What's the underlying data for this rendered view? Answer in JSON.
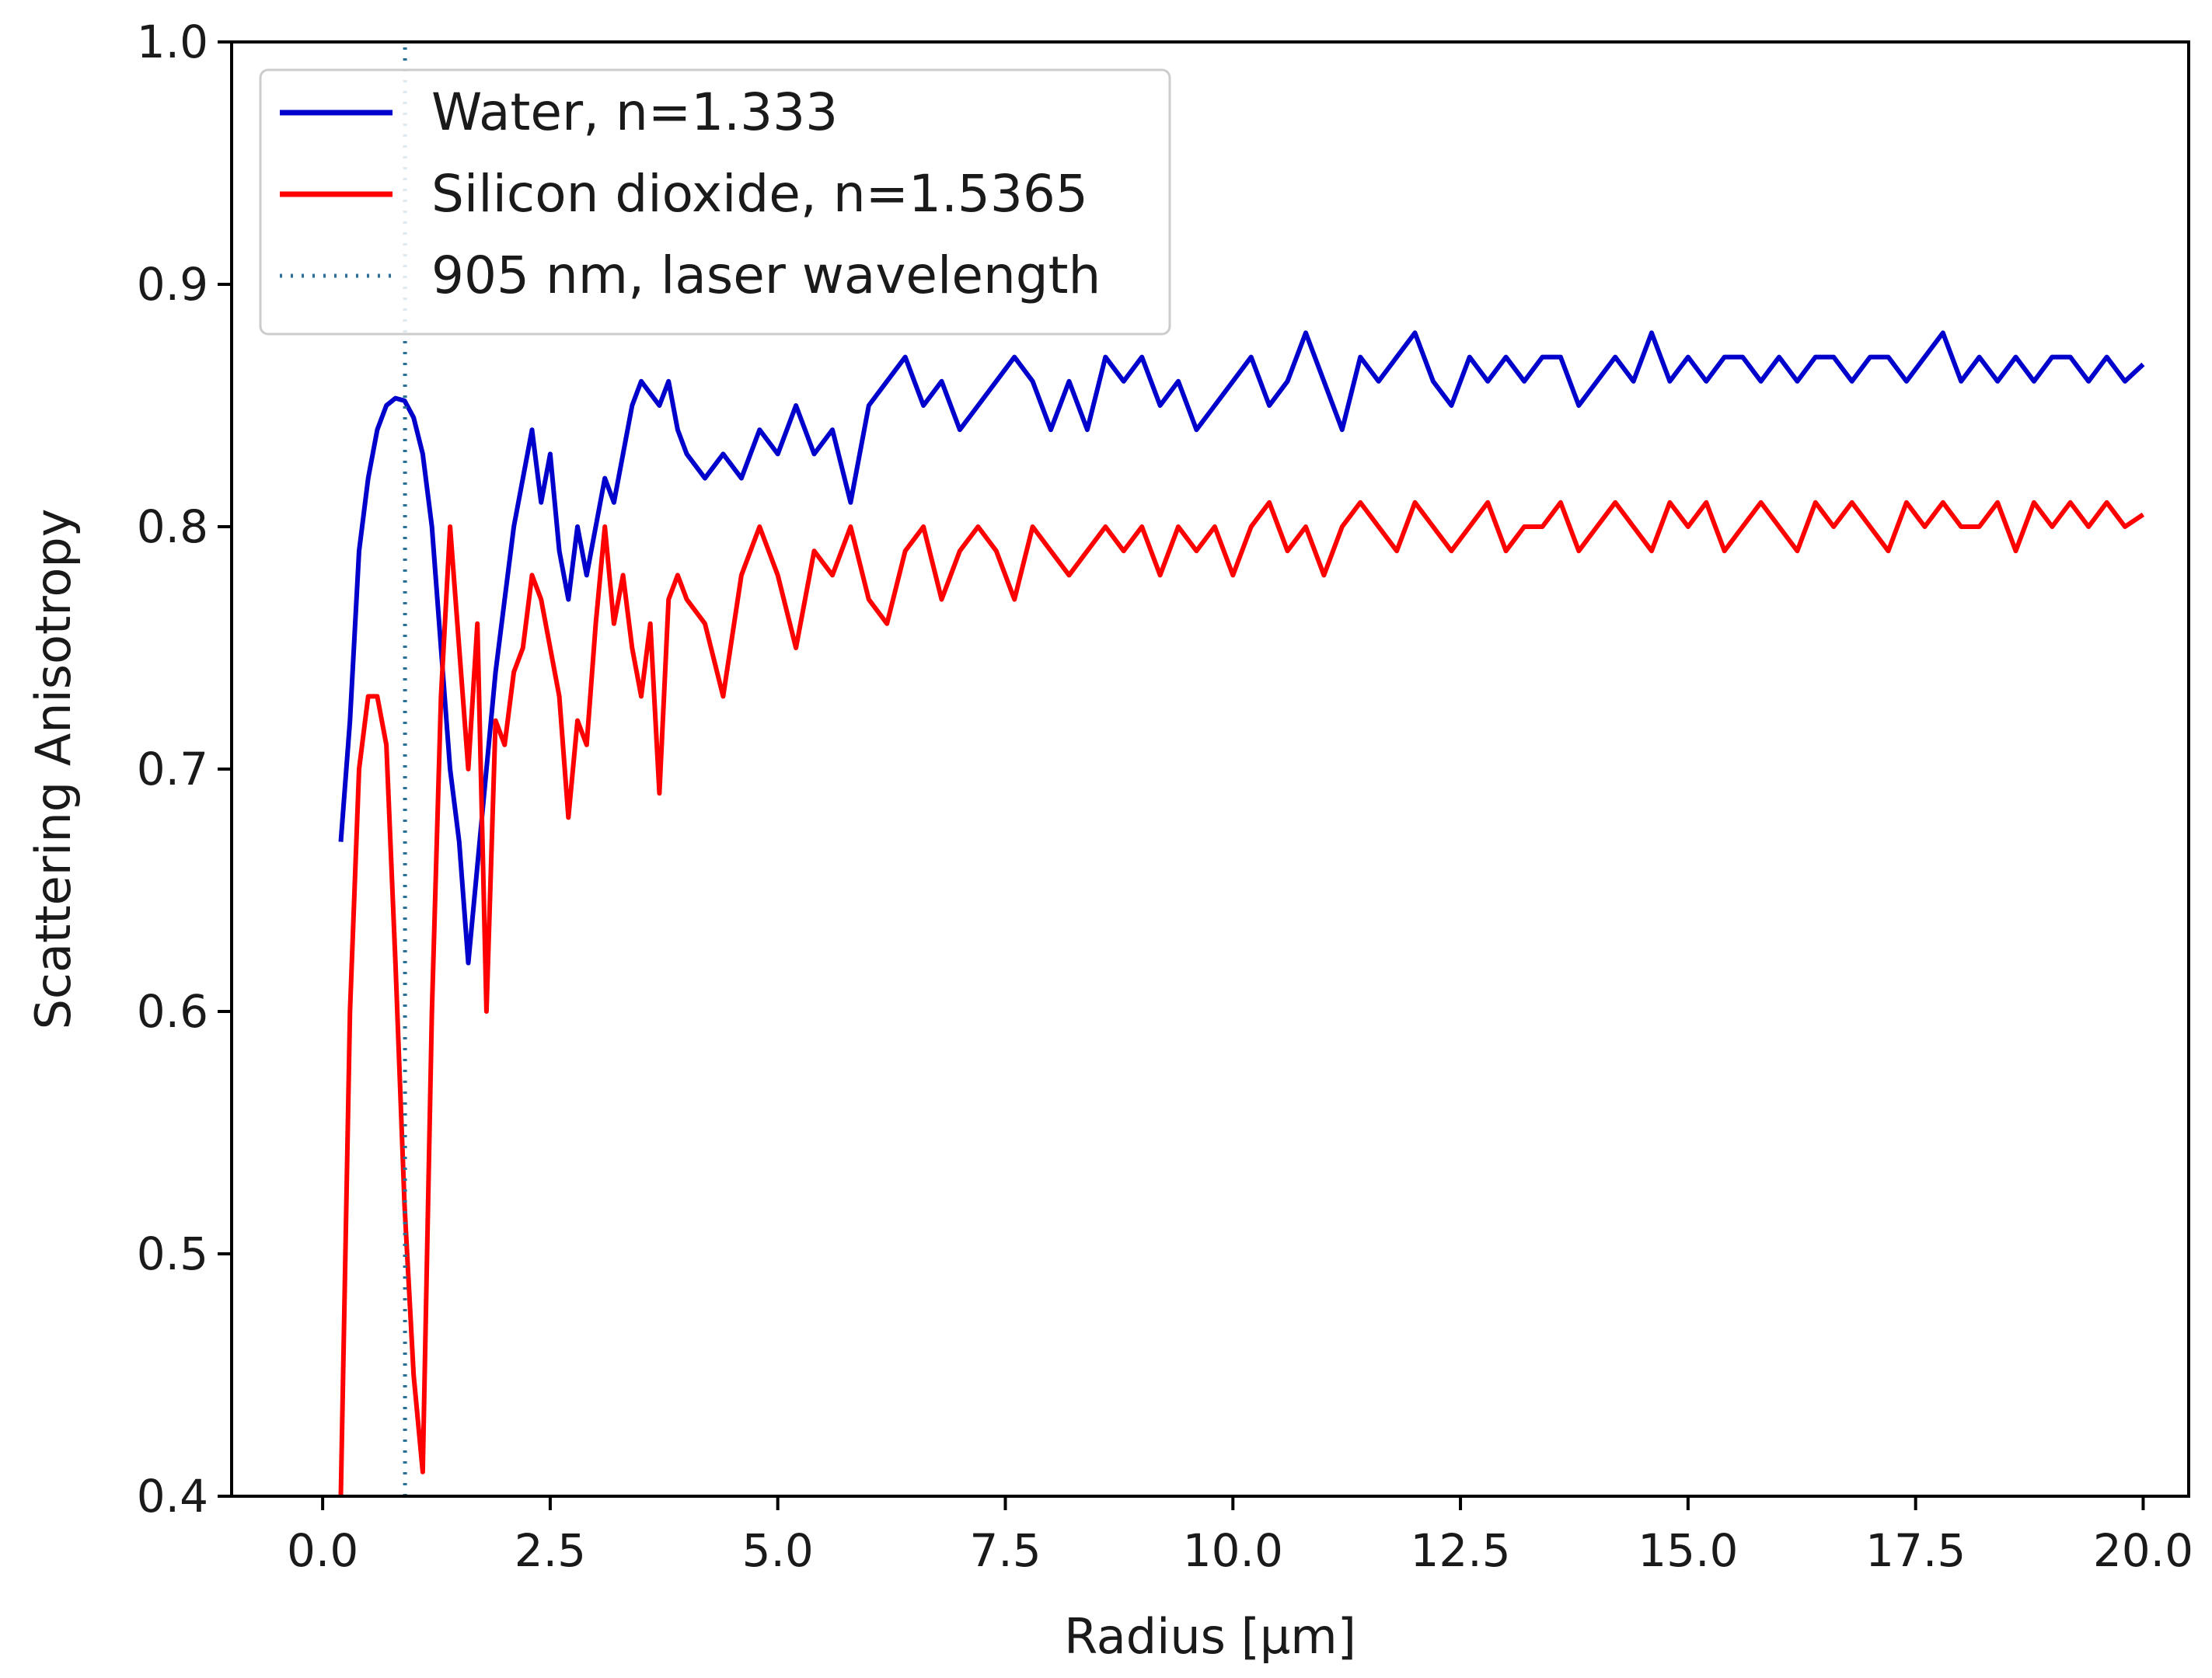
{
  "chart_data": {
    "type": "line",
    "title": "",
    "xlabel": "Radius [μm]",
    "ylabel": "Scattering Anisotropy",
    "xlim": [
      -1.0,
      20.5
    ],
    "ylim": [
      0.4,
      1.0
    ],
    "xticks": [
      0.0,
      2.5,
      5.0,
      7.5,
      10.0,
      12.5,
      15.0,
      17.5,
      20.0
    ],
    "xtick_labels": [
      "0.0",
      "2.5",
      "5.0",
      "7.5",
      "10.0",
      "12.5",
      "15.0",
      "17.5",
      "20.0"
    ],
    "yticks": [
      0.4,
      0.5,
      0.6,
      0.7,
      0.8,
      0.9,
      1.0
    ],
    "ytick_labels": [
      "0.4",
      "0.5",
      "0.6",
      "0.7",
      "0.8",
      "0.9",
      "1.0"
    ],
    "grid": false,
    "legend_position": "top-left",
    "series": [
      {
        "name": "Water, n=1.333",
        "color": "#0000cc",
        "style": "solid",
        "x": [
          0.2,
          0.3,
          0.4,
          0.5,
          0.6,
          0.7,
          0.8,
          0.9,
          1.0,
          1.1,
          1.2,
          1.3,
          1.4,
          1.5,
          1.6,
          1.7,
          1.8,
          1.9,
          2.0,
          2.1,
          2.2,
          2.3,
          2.4,
          2.5,
          2.6,
          2.7,
          2.8,
          2.9,
          3.0,
          3.1,
          3.2,
          3.3,
          3.4,
          3.5,
          3.6,
          3.7,
          3.8,
          3.9,
          4.0,
          4.2,
          4.4,
          4.6,
          4.8,
          5.0,
          5.2,
          5.4,
          5.6,
          5.8,
          6.0,
          6.2,
          6.4,
          6.6,
          6.8,
          7.0,
          7.2,
          7.4,
          7.6,
          7.8,
          8.0,
          8.2,
          8.4,
          8.6,
          8.8,
          9.0,
          9.2,
          9.4,
          9.6,
          9.8,
          10.0,
          10.2,
          10.4,
          10.6,
          10.8,
          11.0,
          11.2,
          11.4,
          11.6,
          11.8,
          12.0,
          12.2,
          12.4,
          12.6,
          12.8,
          13.0,
          13.2,
          13.4,
          13.6,
          13.8,
          14.0,
          14.2,
          14.4,
          14.6,
          14.8,
          15.0,
          15.2,
          15.4,
          15.6,
          15.8,
          16.0,
          16.2,
          16.4,
          16.6,
          16.8,
          17.0,
          17.2,
          17.4,
          17.6,
          17.8,
          18.0,
          18.2,
          18.4,
          18.6,
          18.8,
          19.0,
          19.2,
          19.4,
          19.6,
          19.8,
          20.0
        ],
        "values": [
          0.67,
          0.72,
          0.79,
          0.82,
          0.84,
          0.85,
          0.853,
          0.852,
          0.845,
          0.83,
          0.8,
          0.75,
          0.7,
          0.67,
          0.62,
          0.66,
          0.7,
          0.74,
          0.77,
          0.8,
          0.82,
          0.84,
          0.81,
          0.83,
          0.79,
          0.77,
          0.8,
          0.78,
          0.8,
          0.82,
          0.81,
          0.83,
          0.85,
          0.86,
          0.855,
          0.85,
          0.86,
          0.84,
          0.83,
          0.82,
          0.83,
          0.82,
          0.84,
          0.83,
          0.85,
          0.83,
          0.84,
          0.81,
          0.85,
          0.86,
          0.87,
          0.85,
          0.86,
          0.84,
          0.85,
          0.86,
          0.87,
          0.86,
          0.84,
          0.86,
          0.84,
          0.87,
          0.86,
          0.87,
          0.85,
          0.86,
          0.84,
          0.85,
          0.86,
          0.87,
          0.85,
          0.86,
          0.88,
          0.86,
          0.84,
          0.87,
          0.86,
          0.87,
          0.88,
          0.86,
          0.85,
          0.87,
          0.86,
          0.87,
          0.86,
          0.87,
          0.87,
          0.85,
          0.86,
          0.87,
          0.86,
          0.88,
          0.86,
          0.87,
          0.86,
          0.87,
          0.87,
          0.86,
          0.87,
          0.86,
          0.87,
          0.87,
          0.86,
          0.87,
          0.87,
          0.86,
          0.87,
          0.88,
          0.86,
          0.87,
          0.86,
          0.87,
          0.86,
          0.87,
          0.87,
          0.86,
          0.87,
          0.86,
          0.867
        ]
      },
      {
        "name": "Silicon dioxide, n=1.5365",
        "color": "#ff0000",
        "style": "solid",
        "x": [
          0.2,
          0.3,
          0.4,
          0.5,
          0.6,
          0.7,
          0.8,
          0.9,
          1.0,
          1.1,
          1.2,
          1.3,
          1.4,
          1.5,
          1.6,
          1.7,
          1.8,
          1.9,
          2.0,
          2.1,
          2.2,
          2.3,
          2.4,
          2.5,
          2.6,
          2.7,
          2.8,
          2.9,
          3.0,
          3.1,
          3.2,
          3.3,
          3.4,
          3.5,
          3.6,
          3.7,
          3.8,
          3.9,
          4.0,
          4.2,
          4.4,
          4.6,
          4.8,
          5.0,
          5.2,
          5.4,
          5.6,
          5.8,
          6.0,
          6.2,
          6.4,
          6.6,
          6.8,
          7.0,
          7.2,
          7.4,
          7.6,
          7.8,
          8.0,
          8.2,
          8.4,
          8.6,
          8.8,
          9.0,
          9.2,
          9.4,
          9.6,
          9.8,
          10.0,
          10.2,
          10.4,
          10.6,
          10.8,
          11.0,
          11.2,
          11.4,
          11.6,
          11.8,
          12.0,
          12.2,
          12.4,
          12.6,
          12.8,
          13.0,
          13.2,
          13.4,
          13.6,
          13.8,
          14.0,
          14.2,
          14.4,
          14.6,
          14.8,
          15.0,
          15.2,
          15.4,
          15.6,
          15.8,
          16.0,
          16.2,
          16.4,
          16.6,
          16.8,
          17.0,
          17.2,
          17.4,
          17.6,
          17.8,
          18.0,
          18.2,
          18.4,
          18.6,
          18.8,
          19.0,
          19.2,
          19.4,
          19.6,
          19.8,
          20.0
        ],
        "values": [
          0.4,
          0.6,
          0.7,
          0.73,
          0.73,
          0.71,
          0.62,
          0.52,
          0.45,
          0.41,
          0.6,
          0.73,
          0.8,
          0.75,
          0.7,
          0.76,
          0.6,
          0.72,
          0.71,
          0.74,
          0.75,
          0.78,
          0.77,
          0.75,
          0.73,
          0.68,
          0.72,
          0.71,
          0.76,
          0.8,
          0.76,
          0.78,
          0.75,
          0.73,
          0.76,
          0.69,
          0.77,
          0.78,
          0.77,
          0.76,
          0.73,
          0.78,
          0.8,
          0.78,
          0.75,
          0.79,
          0.78,
          0.8,
          0.77,
          0.76,
          0.79,
          0.8,
          0.77,
          0.79,
          0.8,
          0.79,
          0.77,
          0.8,
          0.79,
          0.78,
          0.79,
          0.8,
          0.79,
          0.8,
          0.78,
          0.8,
          0.79,
          0.8,
          0.78,
          0.8,
          0.81,
          0.79,
          0.8,
          0.78,
          0.8,
          0.81,
          0.8,
          0.79,
          0.81,
          0.8,
          0.79,
          0.8,
          0.81,
          0.79,
          0.8,
          0.8,
          0.81,
          0.79,
          0.8,
          0.81,
          0.8,
          0.79,
          0.81,
          0.8,
          0.81,
          0.79,
          0.8,
          0.81,
          0.8,
          0.79,
          0.81,
          0.8,
          0.81,
          0.8,
          0.79,
          0.81,
          0.8,
          0.81,
          0.8,
          0.8,
          0.81,
          0.79,
          0.81,
          0.8,
          0.81,
          0.8,
          0.81,
          0.8,
          0.805
        ]
      },
      {
        "name": "905 nm, laser wavelength",
        "color": "#2a6f97",
        "style": "dotted",
        "x": [
          0.905,
          0.905
        ],
        "values": [
          0.4,
          1.0
        ]
      }
    ]
  }
}
